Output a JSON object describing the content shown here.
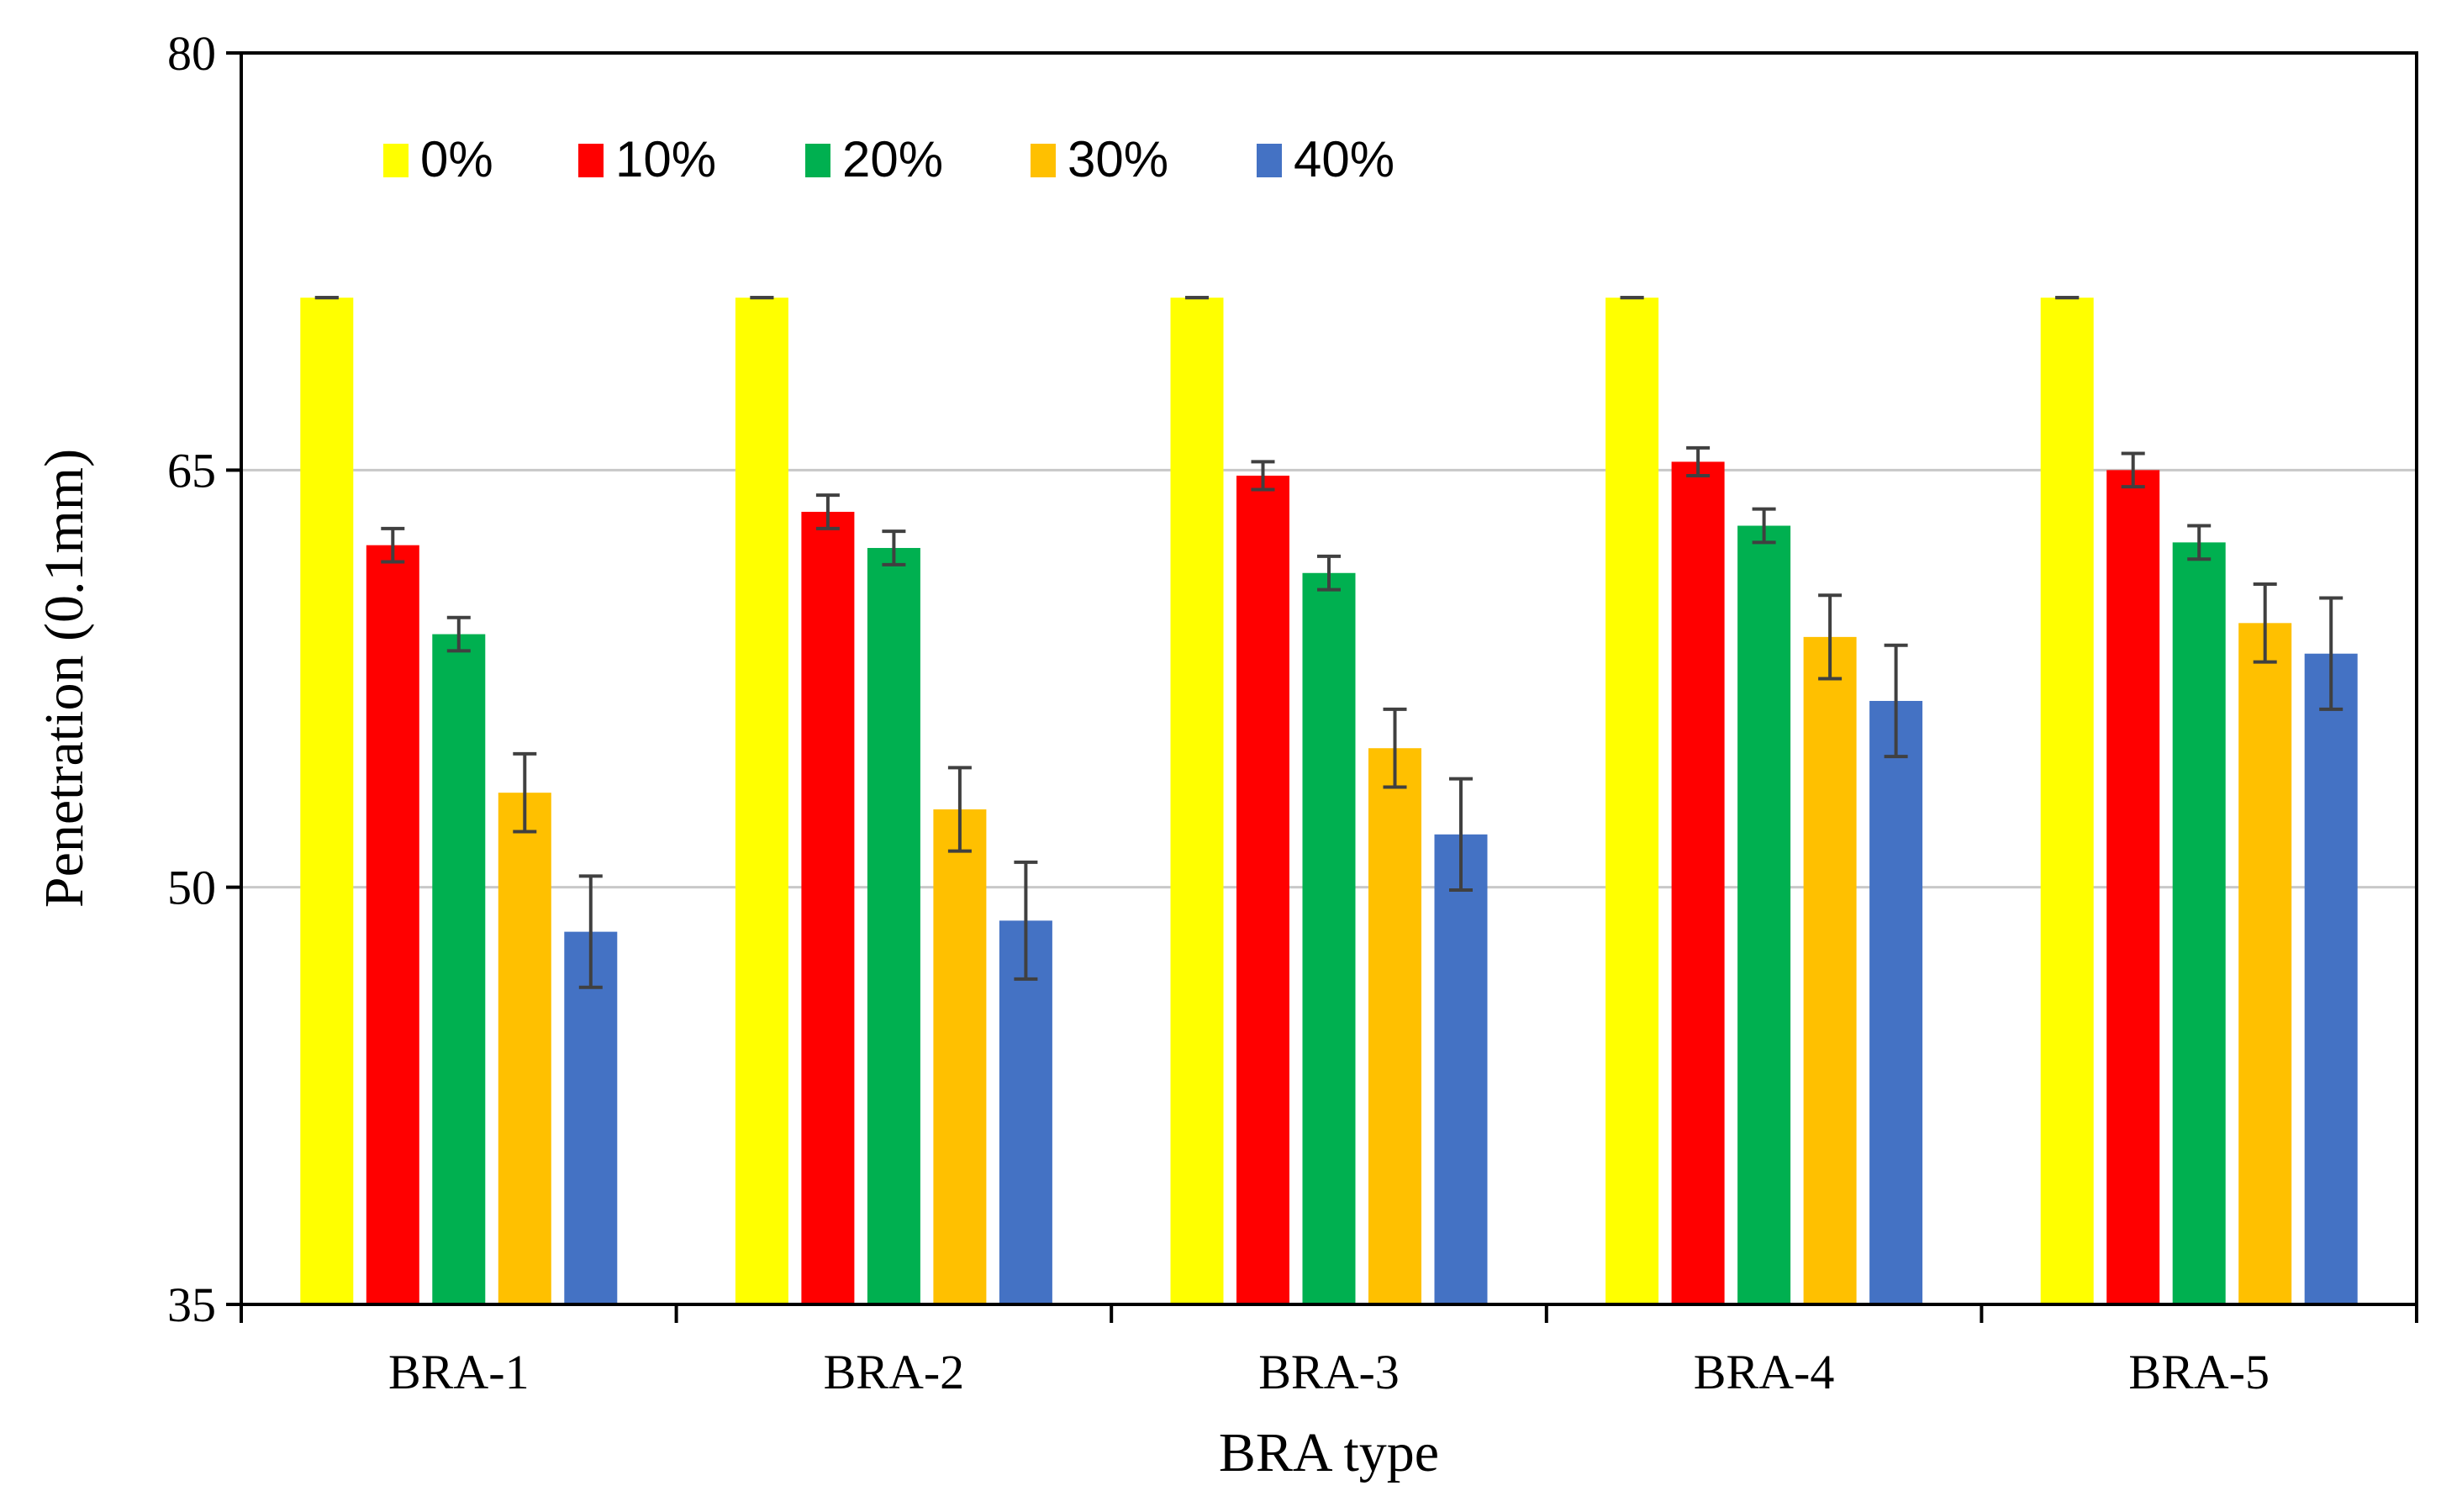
{
  "chart_data": {
    "type": "bar",
    "title": "",
    "xlabel": "BRA type",
    "ylabel": "Penetration (0.1mm)",
    "ylim": [
      35,
      80
    ],
    "yticks": [
      35,
      50,
      65,
      80
    ],
    "gridlines": [
      50,
      65
    ],
    "legend_position": "top-left inside",
    "categories": [
      "BRA-1",
      "BRA-2",
      "BRA-3",
      "BRA-4",
      "BRA-5"
    ],
    "series": [
      {
        "name": "0%",
        "color": "#FFFF00",
        "values": [
          71.2,
          71.2,
          71.2,
          71.2,
          71.2
        ],
        "errors": [
          0,
          0,
          0,
          0,
          0
        ]
      },
      {
        "name": "10%",
        "color": "#FF0000",
        "values": [
          62.3,
          63.5,
          64.8,
          65.3,
          65.0
        ],
        "errors": [
          0.6,
          0.6,
          0.5,
          0.5,
          0.6
        ]
      },
      {
        "name": "20%",
        "color": "#00B050",
        "values": [
          59.1,
          62.2,
          61.3,
          63.0,
          62.4
        ],
        "errors": [
          0.6,
          0.6,
          0.6,
          0.6,
          0.6
        ]
      },
      {
        "name": "30%",
        "color": "#FFC000",
        "values": [
          53.4,
          52.8,
          55.0,
          59.0,
          59.5
        ],
        "errors": [
          1.4,
          1.5,
          1.4,
          1.5,
          1.4
        ]
      },
      {
        "name": "40%",
        "color": "#4472C4",
        "values": [
          48.4,
          48.8,
          51.9,
          56.7,
          58.4
        ],
        "errors": [
          2.0,
          2.1,
          2.0,
          2.0,
          2.0
        ]
      }
    ]
  }
}
